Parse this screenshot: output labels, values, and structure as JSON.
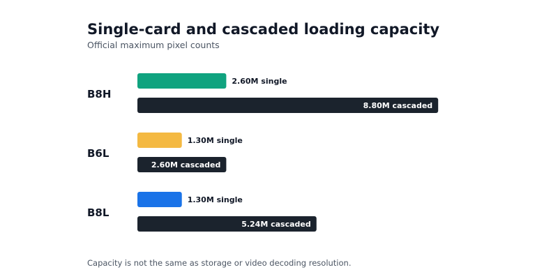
{
  "title": "Single-card and cascaded loading capacity",
  "subtitle": "Official maximum pixel counts",
  "footnote": "Capacity is not the same as storage or video decoding resolution.",
  "chart_data": {
    "type": "bar",
    "orientation": "horizontal",
    "unit": "M",
    "xlim": [
      0,
      10
    ],
    "grid": false,
    "legend": "none",
    "categories": [
      "B8H",
      "B6L",
      "B8L"
    ],
    "series": [
      {
        "values": [
          2.6,
          1.3,
          1.3
        ],
        "labels": [
          "2.60M single",
          "1.30M single",
          "1.30M single"
        ],
        "colors": [
          "#10a37f",
          "#f4b942",
          "#1a73e8"
        ]
      },
      {
        "values": [
          8.8,
          2.6,
          5.24
        ],
        "labels": [
          "8.80M cascaded",
          "2.60M cascaded",
          "5.24M cascaded"
        ],
        "colors": [
          "#1b232d",
          "#1b232d",
          "#1b232d"
        ]
      }
    ]
  }
}
